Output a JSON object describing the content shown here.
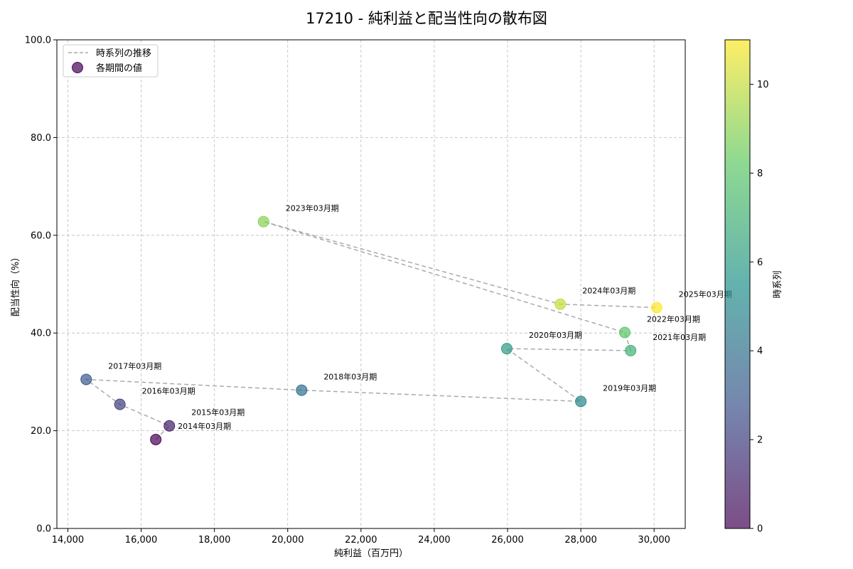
{
  "chart_data": {
    "type": "scatter",
    "title": "17210 - 純利益と配当性向の散布図",
    "xlabel": "純利益（百万円）",
    "ylabel": "配当性向（%）",
    "xlim": [
      13700,
      30850
    ],
    "ylim": [
      0,
      100
    ],
    "xticks": [
      "14,000",
      "16,000",
      "18,000",
      "20,000",
      "22,000",
      "24,000",
      "26,000",
      "28,000",
      "30,000"
    ],
    "xtick_values": [
      14000,
      16000,
      18000,
      20000,
      22000,
      24000,
      26000,
      28000,
      30000
    ],
    "yticks": [
      "0.0",
      "20.0",
      "40.0",
      "60.0",
      "80.0",
      "100.0"
    ],
    "ytick_values": [
      0,
      20,
      40,
      60,
      80,
      100
    ],
    "grid": true,
    "legend": {
      "placement": "top-left",
      "line_label": "時系列の推移",
      "point_label": "各期間の値"
    },
    "colorbar": {
      "label": "時系列",
      "range": [
        0,
        11
      ],
      "ticks": [
        "0",
        "2",
        "4",
        "6",
        "8",
        "10"
      ],
      "tick_values": [
        0,
        2,
        4,
        6,
        8,
        10
      ]
    },
    "points": [
      {
        "label": "2014年03月期",
        "x": 16400,
        "y": 18.2,
        "t": 0
      },
      {
        "label": "2015年03月期",
        "x": 16770,
        "y": 21.0,
        "t": 1
      },
      {
        "label": "2016年03月期",
        "x": 15420,
        "y": 25.4,
        "t": 2
      },
      {
        "label": "2017年03月期",
        "x": 14500,
        "y": 30.5,
        "t": 3
      },
      {
        "label": "2018年03月期",
        "x": 20380,
        "y": 28.3,
        "t": 4
      },
      {
        "label": "2019年03月期",
        "x": 28000,
        "y": 26.0,
        "t": 5
      },
      {
        "label": "2020年03月期",
        "x": 25980,
        "y": 36.8,
        "t": 6
      },
      {
        "label": "2021年03月期",
        "x": 29360,
        "y": 36.4,
        "t": 7
      },
      {
        "label": "2022年03月期",
        "x": 29200,
        "y": 40.1,
        "t": 8
      },
      {
        "label": "2023年03月期",
        "x": 19340,
        "y": 62.8,
        "t": 9
      },
      {
        "label": "2024年03月期",
        "x": 27440,
        "y": 45.9,
        "t": 10
      },
      {
        "label": "2025年03月期",
        "x": 30070,
        "y": 45.2,
        "t": 11
      }
    ]
  }
}
